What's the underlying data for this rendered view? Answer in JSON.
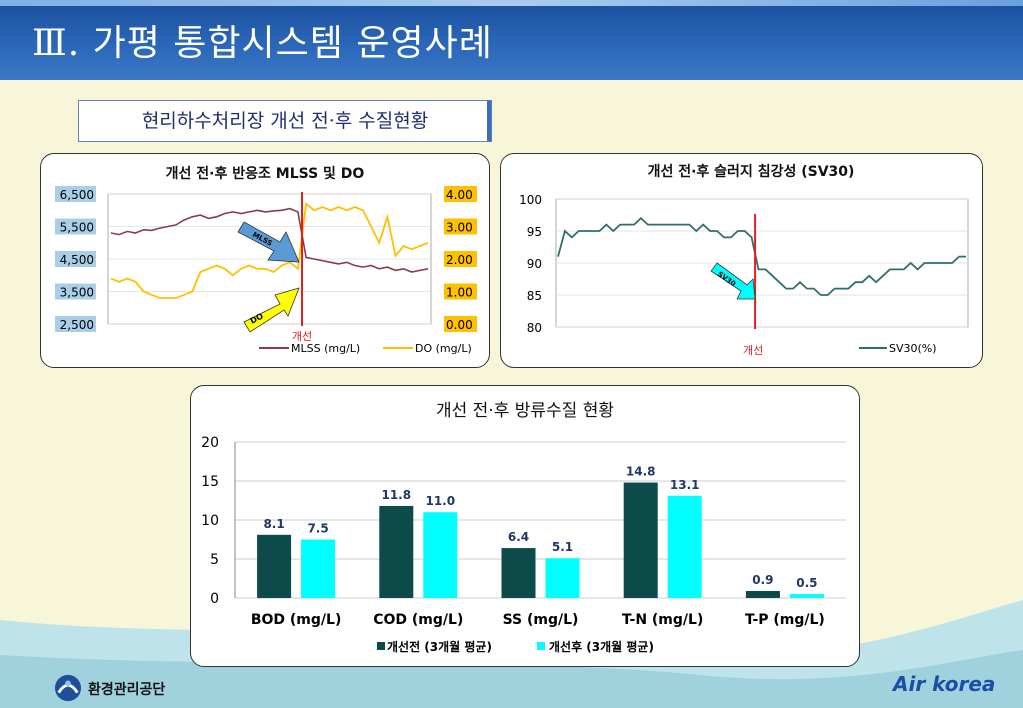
{
  "header": {
    "title": "Ⅲ. 가평 통합시스템 운영사례"
  },
  "section_label": "현리하수처리장 개선 전·후 수질현황",
  "footer": {
    "org_name": "환경관리공단",
    "brand": "Air korea"
  },
  "colors": {
    "header": "#2460b0",
    "mlss": "#8b3a50",
    "do": "#ffc000",
    "sv30": "#2f6e6e",
    "before": "#0d4a4a",
    "after": "#00ffff",
    "marker": "#e02020",
    "do_arrow": "#ffff00",
    "mlss_arrow": "#5b9bd5"
  },
  "chart_data": [
    {
      "type": "line",
      "title": "개선 전·후  반응조 MLSS 및 DO",
      "left_axis": {
        "ticks": [
          "6,500",
          "5,500",
          "4,500",
          "3,500",
          "2,500"
        ],
        "ylim": [
          2500,
          6500
        ]
      },
      "right_axis": {
        "ticks": [
          "4.00",
          "3.00",
          "2.00",
          "1.00",
          "0.00"
        ],
        "ylim": [
          0,
          4
        ]
      },
      "marker_label": "개선",
      "arrow_labels": [
        "MLSS",
        "DO"
      ],
      "legend": [
        "MLSS (mg/L)",
        "DO (mg/L)"
      ],
      "series": [
        {
          "name": "MLSS (mg/L)",
          "axis": "left",
          "values": [
            5300,
            5250,
            5350,
            5300,
            5400,
            5380,
            5450,
            5500,
            5550,
            5700,
            5800,
            5850,
            5750,
            5800,
            5900,
            5950,
            5900,
            5950,
            6000,
            5950,
            5980,
            6000,
            6050,
            5950,
            4550,
            4500,
            4450,
            4400,
            4350,
            4400,
            4300,
            4250,
            4300,
            4200,
            4250,
            4150,
            4200,
            4100,
            4150,
            4200
          ]
        },
        {
          "name": "DO (mg/L)",
          "axis": "right",
          "values": [
            1.4,
            1.3,
            1.4,
            1.3,
            1.0,
            0.9,
            0.8,
            0.8,
            0.8,
            0.9,
            1.0,
            1.6,
            1.7,
            1.8,
            1.7,
            1.5,
            1.7,
            1.8,
            1.7,
            1.7,
            1.6,
            1.8,
            1.9,
            1.7,
            3.7,
            3.5,
            3.6,
            3.5,
            3.6,
            3.5,
            3.6,
            3.5,
            3.0,
            2.5,
            3.3,
            2.1,
            2.4,
            2.3,
            2.4,
            2.5
          ]
        }
      ]
    },
    {
      "type": "line",
      "title": "개선 전·후  슬러지 침강성  (SV30)",
      "ylim": [
        80,
        100
      ],
      "y_ticks": [
        "100",
        "95",
        "90",
        "85",
        "80"
      ],
      "marker_label": "개선",
      "arrow_label": "SV30",
      "legend": [
        "SV30(%)"
      ],
      "series": [
        {
          "name": "SV30(%)",
          "values": [
            91,
            95,
            94,
            95,
            95,
            95,
            95,
            96,
            95,
            96,
            96,
            96,
            97,
            96,
            96,
            96,
            96,
            96,
            96,
            96,
            95,
            96,
            95,
            95,
            94,
            94,
            95,
            95,
            94,
            89,
            89,
            88,
            87,
            86,
            86,
            87,
            86,
            86,
            85,
            85,
            86,
            86,
            86,
            87,
            87,
            88,
            87,
            88,
            89,
            89,
            89,
            90,
            89,
            90,
            90,
            90,
            90,
            90,
            91,
            91
          ]
        }
      ]
    },
    {
      "type": "bar",
      "title": "개선 전·후 방류수질 현황",
      "categories": [
        "BOD (mg/L)",
        "COD (mg/L)",
        "SS (mg/L)",
        "T-N (mg/L)",
        "T-P (mg/L)"
      ],
      "ylim": [
        0,
        20
      ],
      "y_ticks": [
        "20",
        "15",
        "10",
        "5",
        "0"
      ],
      "series": [
        {
          "name": "개선전 (3개월 평균)",
          "values": [
            8.1,
            11.8,
            6.4,
            14.8,
            0.9
          ],
          "labels": [
            "8.1",
            "11.8",
            "6.4",
            "14.8",
            "0.9"
          ]
        },
        {
          "name": "개선후 (3개월 평균)",
          "values": [
            7.5,
            11.0,
            5.1,
            13.1,
            0.5
          ],
          "labels": [
            "7.5",
            "11.0",
            "5.1",
            "13.1",
            "0.5"
          ]
        }
      ]
    }
  ]
}
